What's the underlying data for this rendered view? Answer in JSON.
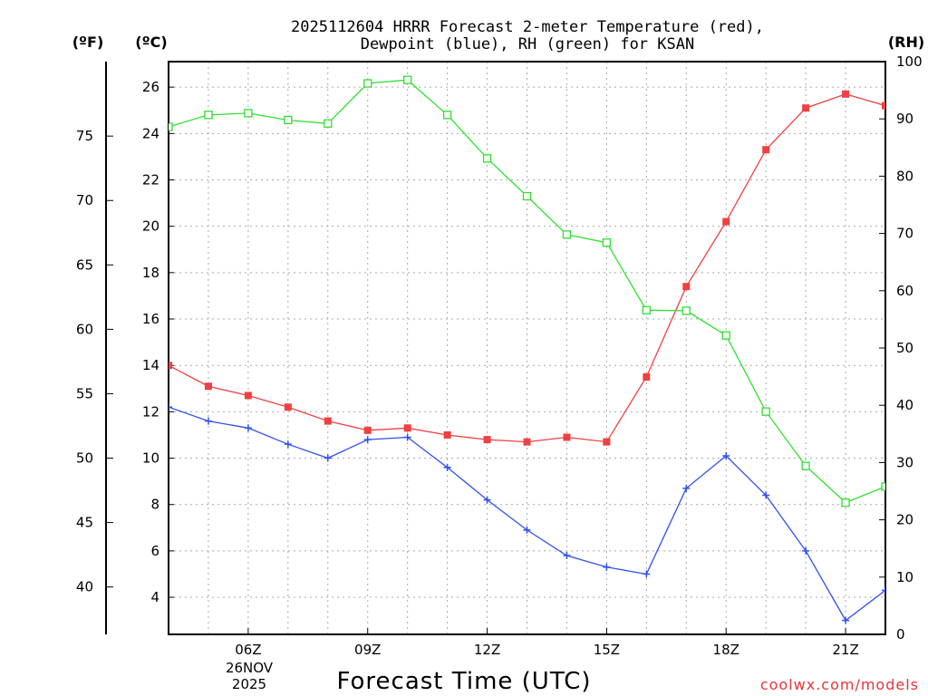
{
  "chart_data": {
    "type": "line",
    "title_line1": "2025112604 HRRR Forecast 2-meter Temperature (red),",
    "title_line2": "Dewpoint (blue), RH (green) for KSAN",
    "xlabel": "Forecast Time (UTC)",
    "credit": "coolwx.com/models",
    "date_lines": [
      "26NOV",
      "2025"
    ],
    "x_hours": [
      4,
      5,
      6,
      7,
      8,
      9,
      10,
      11,
      12,
      13,
      14,
      15,
      16,
      17,
      18,
      19,
      20,
      21,
      22
    ],
    "xlim": [
      4,
      22
    ],
    "x_ticks": [
      {
        "hour": 6,
        "label": "06Z"
      },
      {
        "hour": 9,
        "label": "09Z"
      },
      {
        "hour": 12,
        "label": "12Z"
      },
      {
        "hour": 15,
        "label": "15Z"
      },
      {
        "hour": 18,
        "label": "18Z"
      },
      {
        "hour": 21,
        "label": "21Z"
      }
    ],
    "axes": {
      "celsius": {
        "unit": "(ºC)",
        "range": [
          2.4,
          27.1
        ],
        "ticks": [
          4,
          6,
          8,
          10,
          12,
          14,
          16,
          18,
          20,
          22,
          24,
          26
        ]
      },
      "fahrenheit": {
        "unit": "(ºF)",
        "ticks": [
          40,
          45,
          50,
          55,
          60,
          65,
          70,
          75
        ]
      },
      "rh": {
        "unit": "(RH)",
        "range": [
          0,
          100
        ],
        "ticks": [
          0,
          10,
          20,
          30,
          40,
          50,
          60,
          70,
          80,
          90,
          100
        ]
      }
    },
    "series": [
      {
        "name": "2-meter Temperature",
        "axis": "celsius",
        "color": "#f04040",
        "marker": "filled-square",
        "values": [
          14.0,
          13.1,
          12.7,
          12.2,
          11.6,
          11.2,
          11.3,
          11.0,
          10.8,
          10.7,
          10.9,
          10.7,
          13.5,
          17.4,
          20.2,
          23.3,
          25.1,
          25.7,
          25.2
        ]
      },
      {
        "name": "Dewpoint",
        "axis": "celsius",
        "color": "#3050f0",
        "marker": "plus",
        "values": [
          12.2,
          11.6,
          11.3,
          10.6,
          10.0,
          10.8,
          10.9,
          9.6,
          8.2,
          6.9,
          5.8,
          5.3,
          5.0,
          8.7,
          10.1,
          8.4,
          6.0,
          3.0,
          4.3
        ]
      },
      {
        "name": "Relative Humidity",
        "axis": "rh",
        "color": "#30e030",
        "marker": "open-square",
        "values": [
          88.6,
          90.7,
          91.0,
          89.8,
          89.2,
          96.2,
          96.8,
          90.7,
          83.1,
          76.5,
          69.8,
          68.4,
          56.6,
          56.5,
          52.2,
          38.9,
          29.4,
          23.0,
          25.8
        ]
      }
    ]
  }
}
